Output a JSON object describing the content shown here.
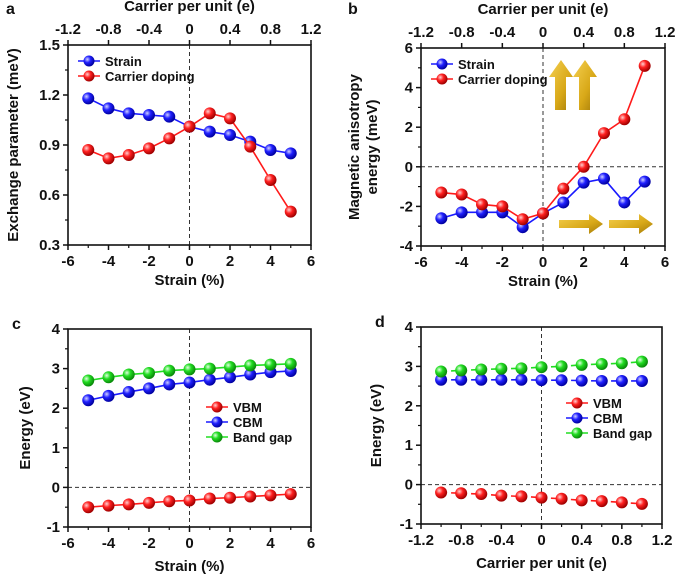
{
  "colors": {
    "strain": "#1a1aff",
    "carrier": "#ff1a1a",
    "vbm": "#ff1a1a",
    "cbm": "#1a1aff",
    "gap": "#22dd22",
    "arrow": "#e0b020"
  },
  "chart_data": [
    {
      "panel": "a",
      "type": "line",
      "xlabel": "Strain (%)",
      "x_top_label": "Carrier per unit (e)",
      "ylabel": "Exchange parameter (meV)",
      "xlim": [
        -6,
        6
      ],
      "xticks": [
        "-6",
        "-4",
        "-2",
        "0",
        "2",
        "4",
        "6"
      ],
      "x_top_lim": [
        -1.2,
        1.2
      ],
      "x_top_ticks": [
        "-1.2",
        "-0.8",
        "-0.4",
        "0",
        "0.4",
        "0.8",
        "1.2"
      ],
      "ylim": [
        0.3,
        1.5
      ],
      "yticks": [
        "0.3",
        "0.6",
        "0.9",
        "1.2",
        "1.5"
      ],
      "legend": "top-left",
      "vline_at_zero": true,
      "hline_at_zero": false,
      "series": [
        {
          "name": "Strain",
          "axis": "bottom",
          "color": "strain",
          "x": [
            -5,
            -4,
            -3,
            -2,
            -1,
            0,
            1,
            2,
            3,
            4,
            5
          ],
          "y": [
            1.18,
            1.12,
            1.09,
            1.08,
            1.07,
            1.01,
            0.98,
            0.96,
            0.92,
            0.87,
            0.85
          ]
        },
        {
          "name": "Carrier doping",
          "axis": "top",
          "color": "carrier",
          "x": [
            -1,
            -0.8,
            -0.6,
            -0.4,
            -0.2,
            0,
            0.2,
            0.4,
            0.6,
            0.8,
            1
          ],
          "y": [
            0.87,
            0.82,
            0.84,
            0.88,
            0.94,
            1.01,
            1.09,
            1.06,
            0.89,
            0.69,
            0.5
          ]
        }
      ]
    },
    {
      "panel": "b",
      "type": "line",
      "xlabel": "Strain (%)",
      "x_top_label": "Carrier per unit (e)",
      "ylabel": [
        "Magnetic anisotropy",
        "energy (meV)"
      ],
      "xlim": [
        -6,
        6
      ],
      "xticks": [
        "-6",
        "-4",
        "-2",
        "0",
        "2",
        "4",
        "6"
      ],
      "x_top_lim": [
        -1.2,
        1.2
      ],
      "x_top_ticks": [
        "-1.2",
        "-0.8",
        "-0.4",
        "0",
        "0.4",
        "0.8",
        "1.2"
      ],
      "ylim": [
        -4,
        6
      ],
      "yticks": [
        "-4",
        "-2",
        "0",
        "2",
        "4",
        "6"
      ],
      "legend": "top-left",
      "vline_at_zero": true,
      "hline_at_zero": true,
      "annotations": [
        "out-of-plane-arrows-icon",
        "in-plane-arrows-icon"
      ],
      "series": [
        {
          "name": "Strain",
          "axis": "bottom",
          "color": "strain",
          "x": [
            -5,
            -4,
            -3,
            -2,
            -1,
            0,
            1,
            2,
            3,
            4,
            5
          ],
          "y": [
            -2.6,
            -2.3,
            -2.3,
            -2.3,
            -3.05,
            -2.35,
            -1.8,
            -0.8,
            -0.6,
            -1.8,
            -0.75
          ]
        },
        {
          "name": "Carrier doping",
          "axis": "top",
          "color": "carrier",
          "x": [
            -1,
            -0.8,
            -0.6,
            -0.4,
            -0.2,
            0,
            0.2,
            0.4,
            0.6,
            0.8,
            1
          ],
          "y": [
            -1.3,
            -1.4,
            -1.9,
            -2.0,
            -2.65,
            -2.35,
            -1.1,
            0,
            1.7,
            2.4,
            5.1
          ]
        }
      ]
    },
    {
      "panel": "c",
      "type": "line",
      "xlabel": "Strain (%)",
      "ylabel": "Energy (eV)",
      "xlim": [
        -6,
        6
      ],
      "xticks": [
        "-6",
        "-4",
        "-2",
        "0",
        "2",
        "4",
        "6"
      ],
      "ylim": [
        -1,
        4
      ],
      "yticks": [
        "-1",
        "0",
        "1",
        "2",
        "3",
        "4"
      ],
      "legend": "center-right",
      "vline_at_zero": true,
      "hline_at_zero": true,
      "series": [
        {
          "name": "VBM",
          "axis": "bottom",
          "color": "vbm",
          "x": [
            -5,
            -4,
            -3,
            -2,
            -1,
            0,
            1,
            2,
            3,
            4,
            5
          ],
          "y": [
            -0.5,
            -0.46,
            -0.43,
            -0.39,
            -0.35,
            -0.33,
            -0.28,
            -0.26,
            -0.23,
            -0.2,
            -0.17
          ]
        },
        {
          "name": "CBM",
          "axis": "bottom",
          "color": "cbm",
          "x": [
            -5,
            -4,
            -3,
            -2,
            -1,
            0,
            1,
            2,
            3,
            4,
            5
          ],
          "y": [
            2.2,
            2.31,
            2.41,
            2.5,
            2.6,
            2.65,
            2.72,
            2.78,
            2.85,
            2.91,
            2.94
          ]
        },
        {
          "name": "Band gap",
          "axis": "bottom",
          "color": "gap",
          "x": [
            -5,
            -4,
            -3,
            -2,
            -1,
            0,
            1,
            2,
            3,
            4,
            5
          ],
          "y": [
            2.7,
            2.78,
            2.85,
            2.89,
            2.95,
            2.98,
            3.0,
            3.04,
            3.08,
            3.1,
            3.12
          ]
        }
      ]
    },
    {
      "panel": "d",
      "type": "line",
      "line_style": "dashed",
      "xlabel": "Carrier per unit (e)",
      "ylabel": "Energy (eV)",
      "xlim": [
        -1.2,
        1.2
      ],
      "xticks": [
        "-1.2",
        "-0.8",
        "-0.4",
        "0",
        "0.4",
        "0.8",
        "1.2"
      ],
      "ylim": [
        -1,
        4
      ],
      "yticks": [
        "-1",
        "0",
        "1",
        "2",
        "3",
        "4"
      ],
      "legend": "center-right",
      "vline_at_zero": true,
      "hline_at_zero": true,
      "series": [
        {
          "name": "VBM",
          "axis": "bottom",
          "color": "vbm",
          "x": [
            -1,
            -0.8,
            -0.6,
            -0.4,
            -0.2,
            0,
            0.2,
            0.4,
            0.6,
            0.8,
            1
          ],
          "y": [
            -0.2,
            -0.22,
            -0.24,
            -0.28,
            -0.3,
            -0.33,
            -0.36,
            -0.4,
            -0.42,
            -0.45,
            -0.49
          ]
        },
        {
          "name": "CBM",
          "axis": "bottom",
          "color": "cbm",
          "x": [
            -1,
            -0.8,
            -0.6,
            -0.4,
            -0.2,
            0,
            0.2,
            0.4,
            0.6,
            0.8,
            1
          ],
          "y": [
            2.66,
            2.66,
            2.66,
            2.66,
            2.66,
            2.65,
            2.65,
            2.64,
            2.63,
            2.63,
            2.63
          ]
        },
        {
          "name": "Band gap",
          "axis": "bottom",
          "color": "gap",
          "x": [
            -1,
            -0.8,
            -0.6,
            -0.4,
            -0.2,
            0,
            0.2,
            0.4,
            0.6,
            0.8,
            1
          ],
          "y": [
            2.87,
            2.9,
            2.92,
            2.94,
            2.95,
            2.98,
            3.0,
            3.04,
            3.06,
            3.08,
            3.12
          ]
        }
      ]
    }
  ]
}
